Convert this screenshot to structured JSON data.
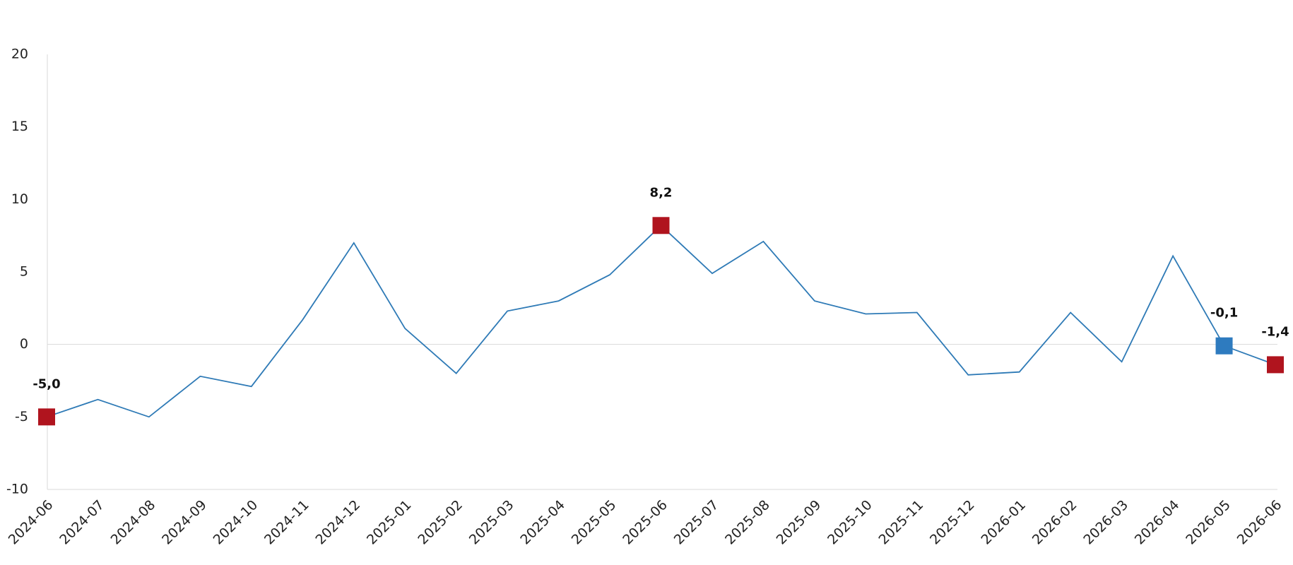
{
  "chart_data": {
    "type": "line",
    "categories": [
      "2024-06",
      "2024-07",
      "2024-08",
      "2024-09",
      "2024-10",
      "2024-11",
      "2024-12",
      "2025-01",
      "2025-02",
      "2025-03",
      "2025-04",
      "2025-05",
      "2025-06",
      "2025-07",
      "2025-08",
      "2025-09",
      "2025-10",
      "2025-11",
      "2025-12",
      "2026-01",
      "2026-02",
      "2026-03",
      "2026-04",
      "2026-05",
      "2026-06"
    ],
    "values": [
      -5.0,
      -3.8,
      -5.0,
      -2.2,
      -2.9,
      1.7,
      7.0,
      1.1,
      -2.0,
      2.3,
      3.0,
      4.8,
      8.2,
      4.9,
      7.1,
      3.0,
      2.1,
      2.2,
      -2.1,
      -1.9,
      2.2,
      -1.2,
      6.1,
      -0.1,
      -1.4
    ],
    "value_labels": [
      "-5,0",
      null,
      null,
      null,
      null,
      null,
      null,
      null,
      null,
      null,
      null,
      null,
      "8,2",
      null,
      null,
      null,
      null,
      null,
      null,
      null,
      null,
      null,
      null,
      "-0,1",
      "-1,4"
    ],
    "marker_colors": [
      "#b0141e",
      null,
      null,
      null,
      null,
      null,
      null,
      null,
      null,
      null,
      null,
      null,
      "#b0141e",
      null,
      null,
      null,
      null,
      null,
      null,
      null,
      null,
      null,
      null,
      "#2e7bbf",
      "#b0141e"
    ],
    "color": "#2e7ab6",
    "ylim": [
      -10,
      20
    ],
    "yticks": [
      -10,
      -5,
      0,
      5,
      10,
      15,
      20
    ],
    "grid": false,
    "zero_line": true
  }
}
